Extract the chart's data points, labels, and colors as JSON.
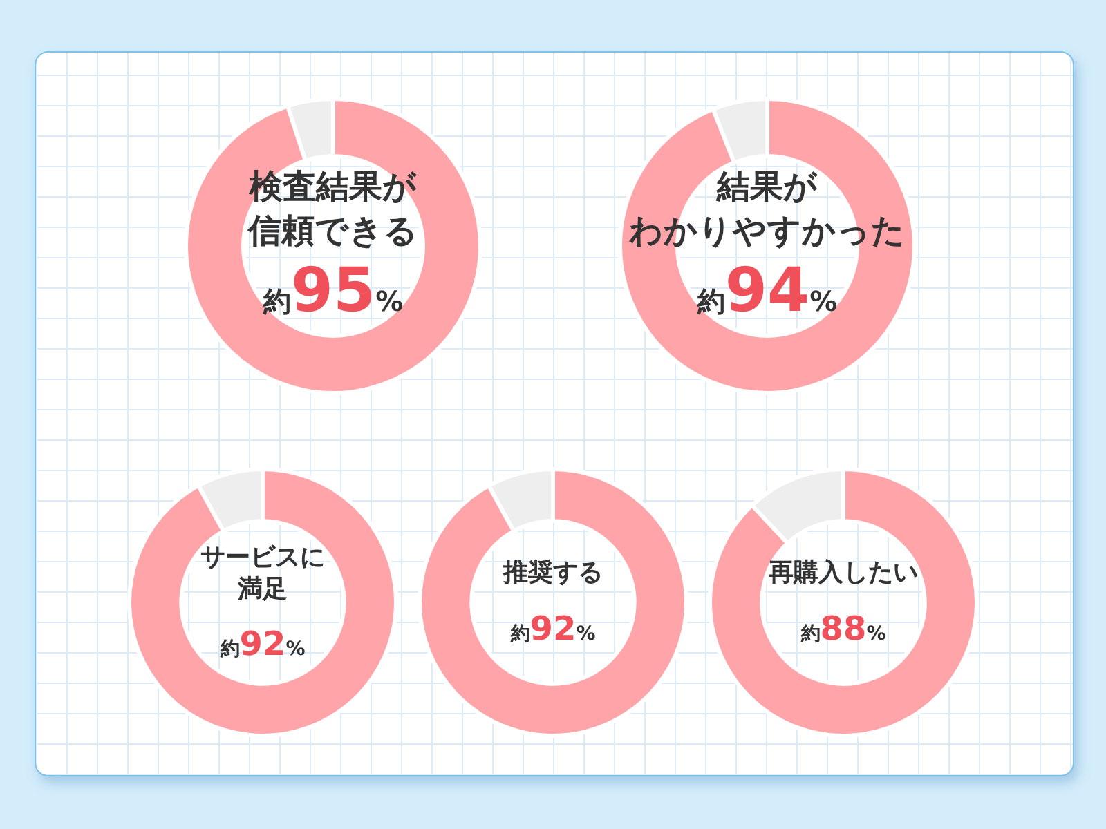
{
  "chart_data": [
    {
      "type": "donut",
      "title": "検査結果が信頼できる",
      "categories": [
        null,
        null
      ],
      "values": [
        95,
        5
      ],
      "colors": [
        "#ffa5aa",
        "#eeeeee"
      ],
      "value_labels": [
        "約95%",
        null
      ]
    },
    {
      "type": "donut",
      "title": "結果がわかりやすかった",
      "categories": [
        null,
        null
      ],
      "values": [
        94,
        6
      ],
      "colors": [
        "#ffa5aa",
        "#eeeeee"
      ],
      "value_labels": [
        "約94%",
        null
      ]
    },
    {
      "type": "donut",
      "title": "サービスに満足",
      "categories": [
        null,
        null
      ],
      "values": [
        92,
        8
      ],
      "colors": [
        "#ffa5aa",
        "#eeeeee"
      ],
      "value_labels": [
        "約92%",
        null
      ]
    },
    {
      "type": "donut",
      "title": "推奨する",
      "categories": [
        null,
        null
      ],
      "values": [
        92,
        8
      ],
      "colors": [
        "#ffa5aa",
        "#eeeeee"
      ],
      "value_labels": [
        "約92%",
        null
      ]
    },
    {
      "type": "donut",
      "title": "再購入したい",
      "categories": [
        null,
        null
      ],
      "values": [
        88,
        12
      ],
      "colors": [
        "#ffa5aa",
        "#eeeeee"
      ],
      "value_labels": [
        "約88%",
        null
      ]
    }
  ]
}
